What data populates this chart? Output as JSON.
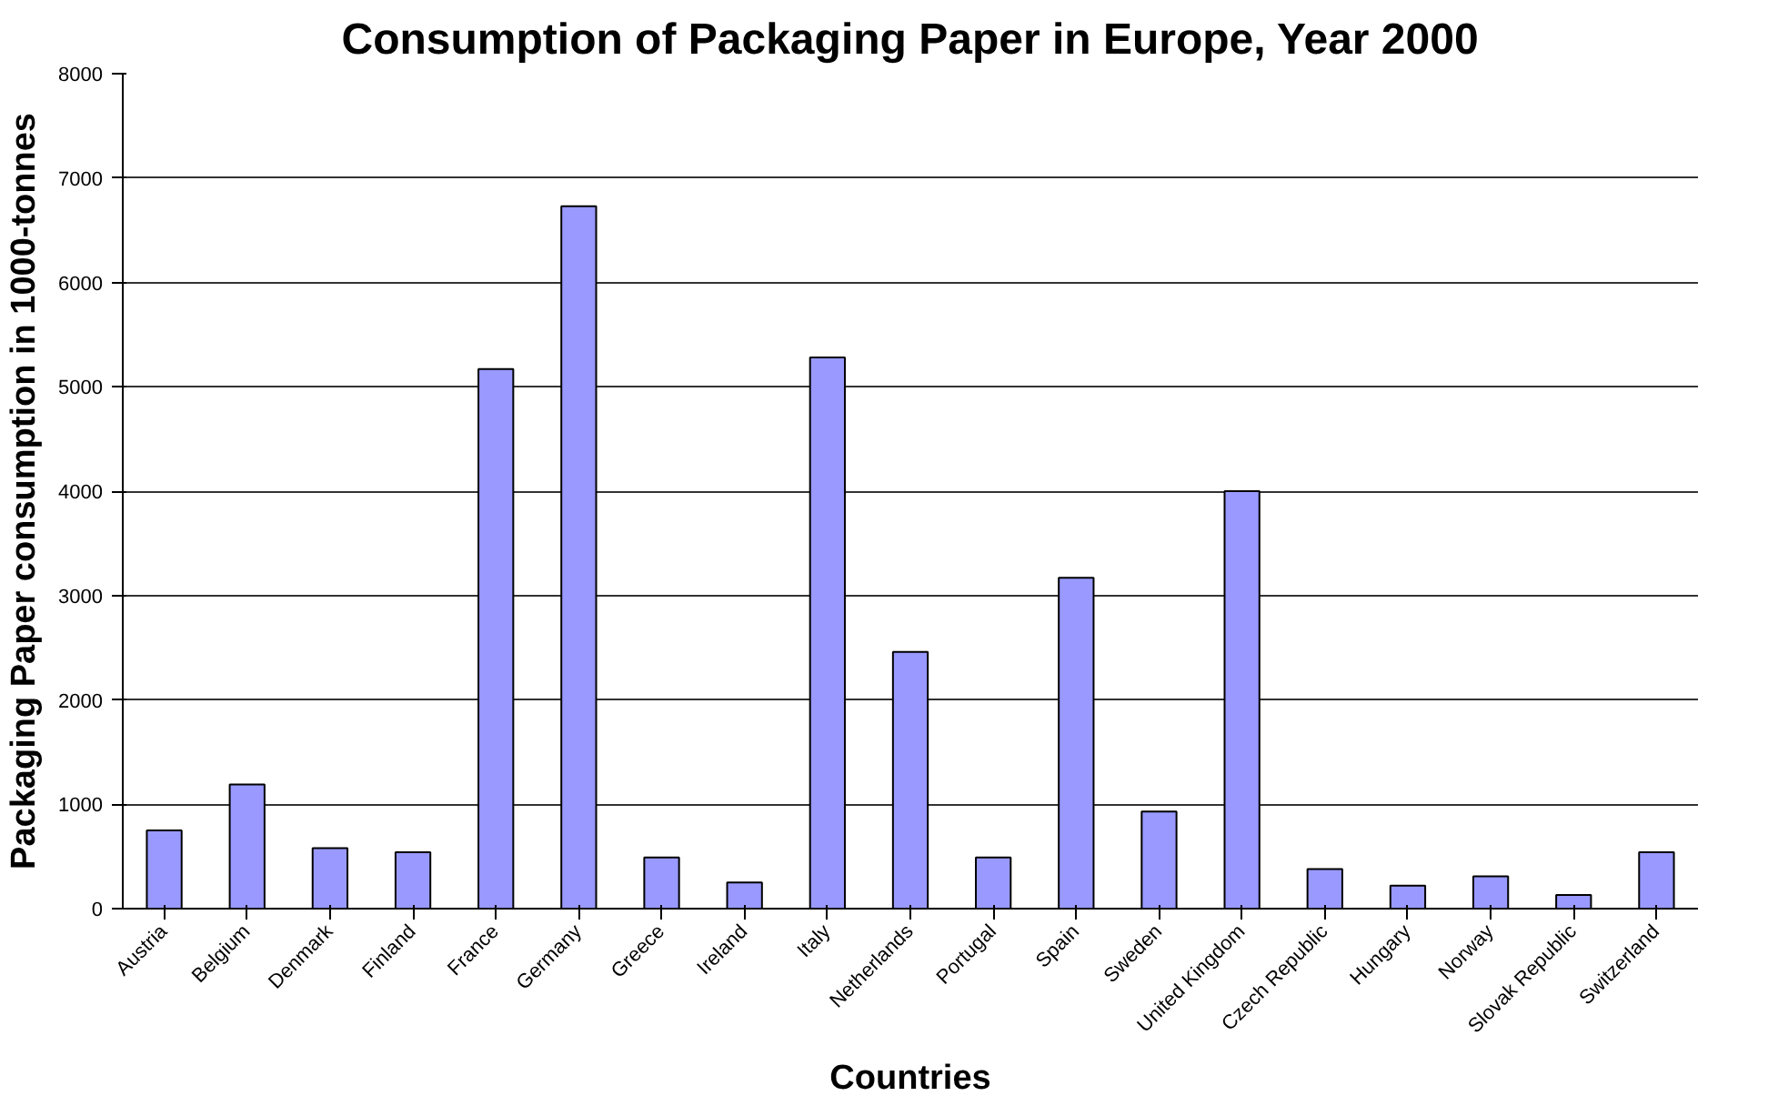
{
  "chart_data": {
    "type": "bar",
    "title": "Consumption of Packaging Paper in Europe, Year 2000",
    "xlabel": "Countries",
    "ylabel": "Packaging Paper consumption in 1000-tonnes",
    "categories": [
      "Austria",
      "Belgium",
      "Denmark",
      "Finland",
      "France",
      "Germany",
      "Greece",
      "Ireland",
      "Italy",
      "Netherlands",
      "Portugal",
      "Spain",
      "Sweden",
      "United Kingdom",
      "Czech Republic",
      "Hungary",
      "Norway",
      "Slovak Republic",
      "Switzerland"
    ],
    "values": [
      750,
      1190,
      580,
      540,
      5170,
      6730,
      490,
      250,
      5280,
      2460,
      490,
      3170,
      930,
      4000,
      380,
      220,
      310,
      130,
      540
    ],
    "color": "#9999ff",
    "ylim": [
      0,
      8000
    ],
    "yticks": [
      0,
      1000,
      2000,
      3000,
      4000,
      5000,
      6000,
      7000,
      8000
    ],
    "grid": "y"
  }
}
